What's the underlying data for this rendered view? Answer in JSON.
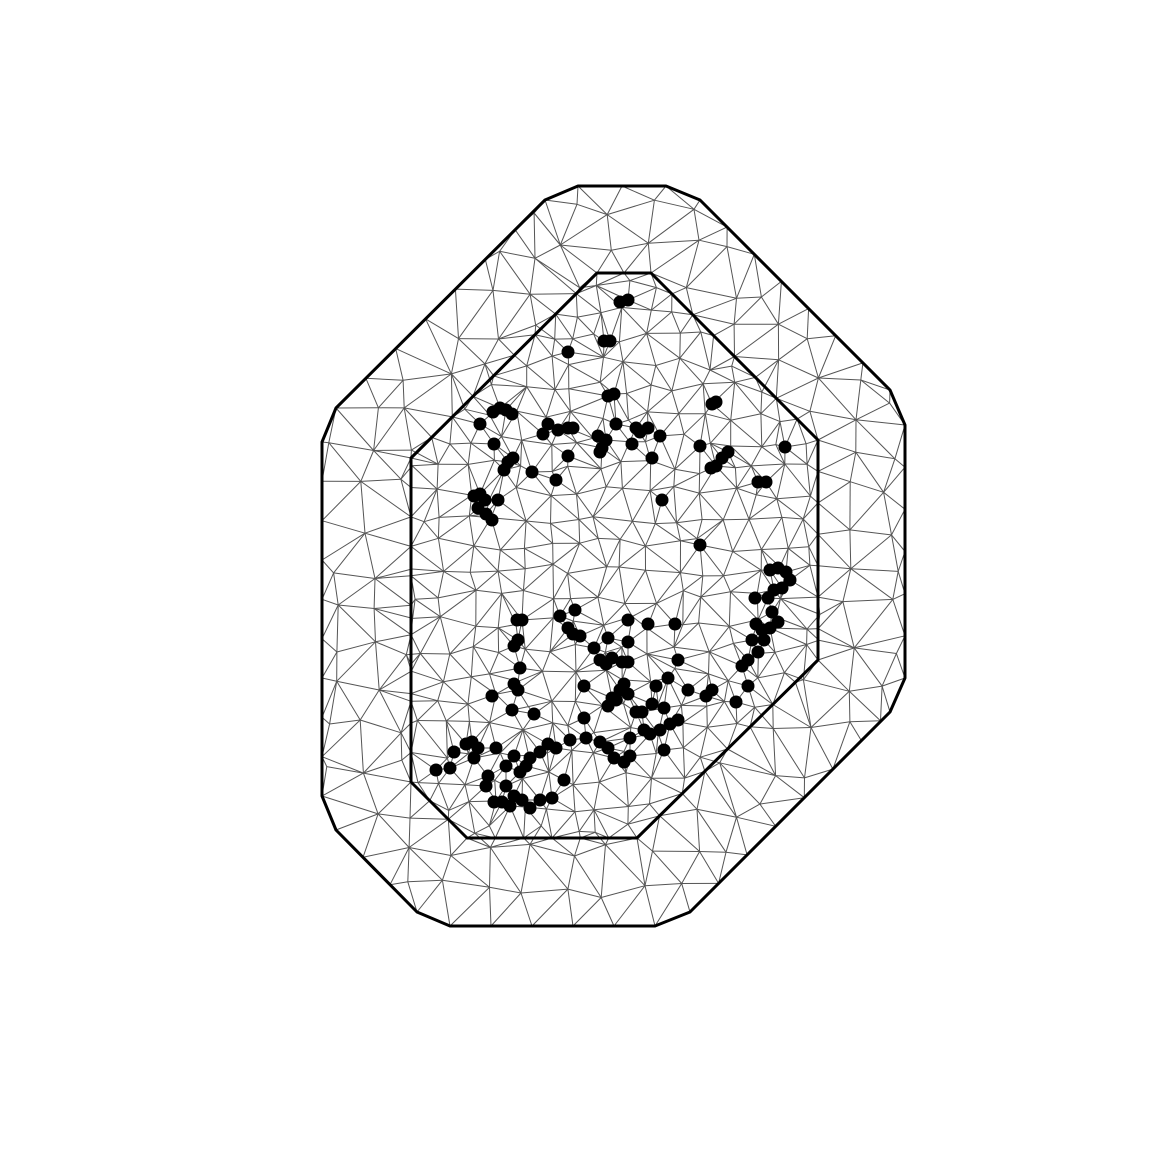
{
  "figure": {
    "type": "triangulation-mesh",
    "colors": {
      "background": "#ffffff",
      "mesh_edges": "#555555",
      "boundaries": "#000000",
      "points": "#000000"
    },
    "boundaries": [
      "outer-boundary",
      "inner-boundary"
    ]
  }
}
